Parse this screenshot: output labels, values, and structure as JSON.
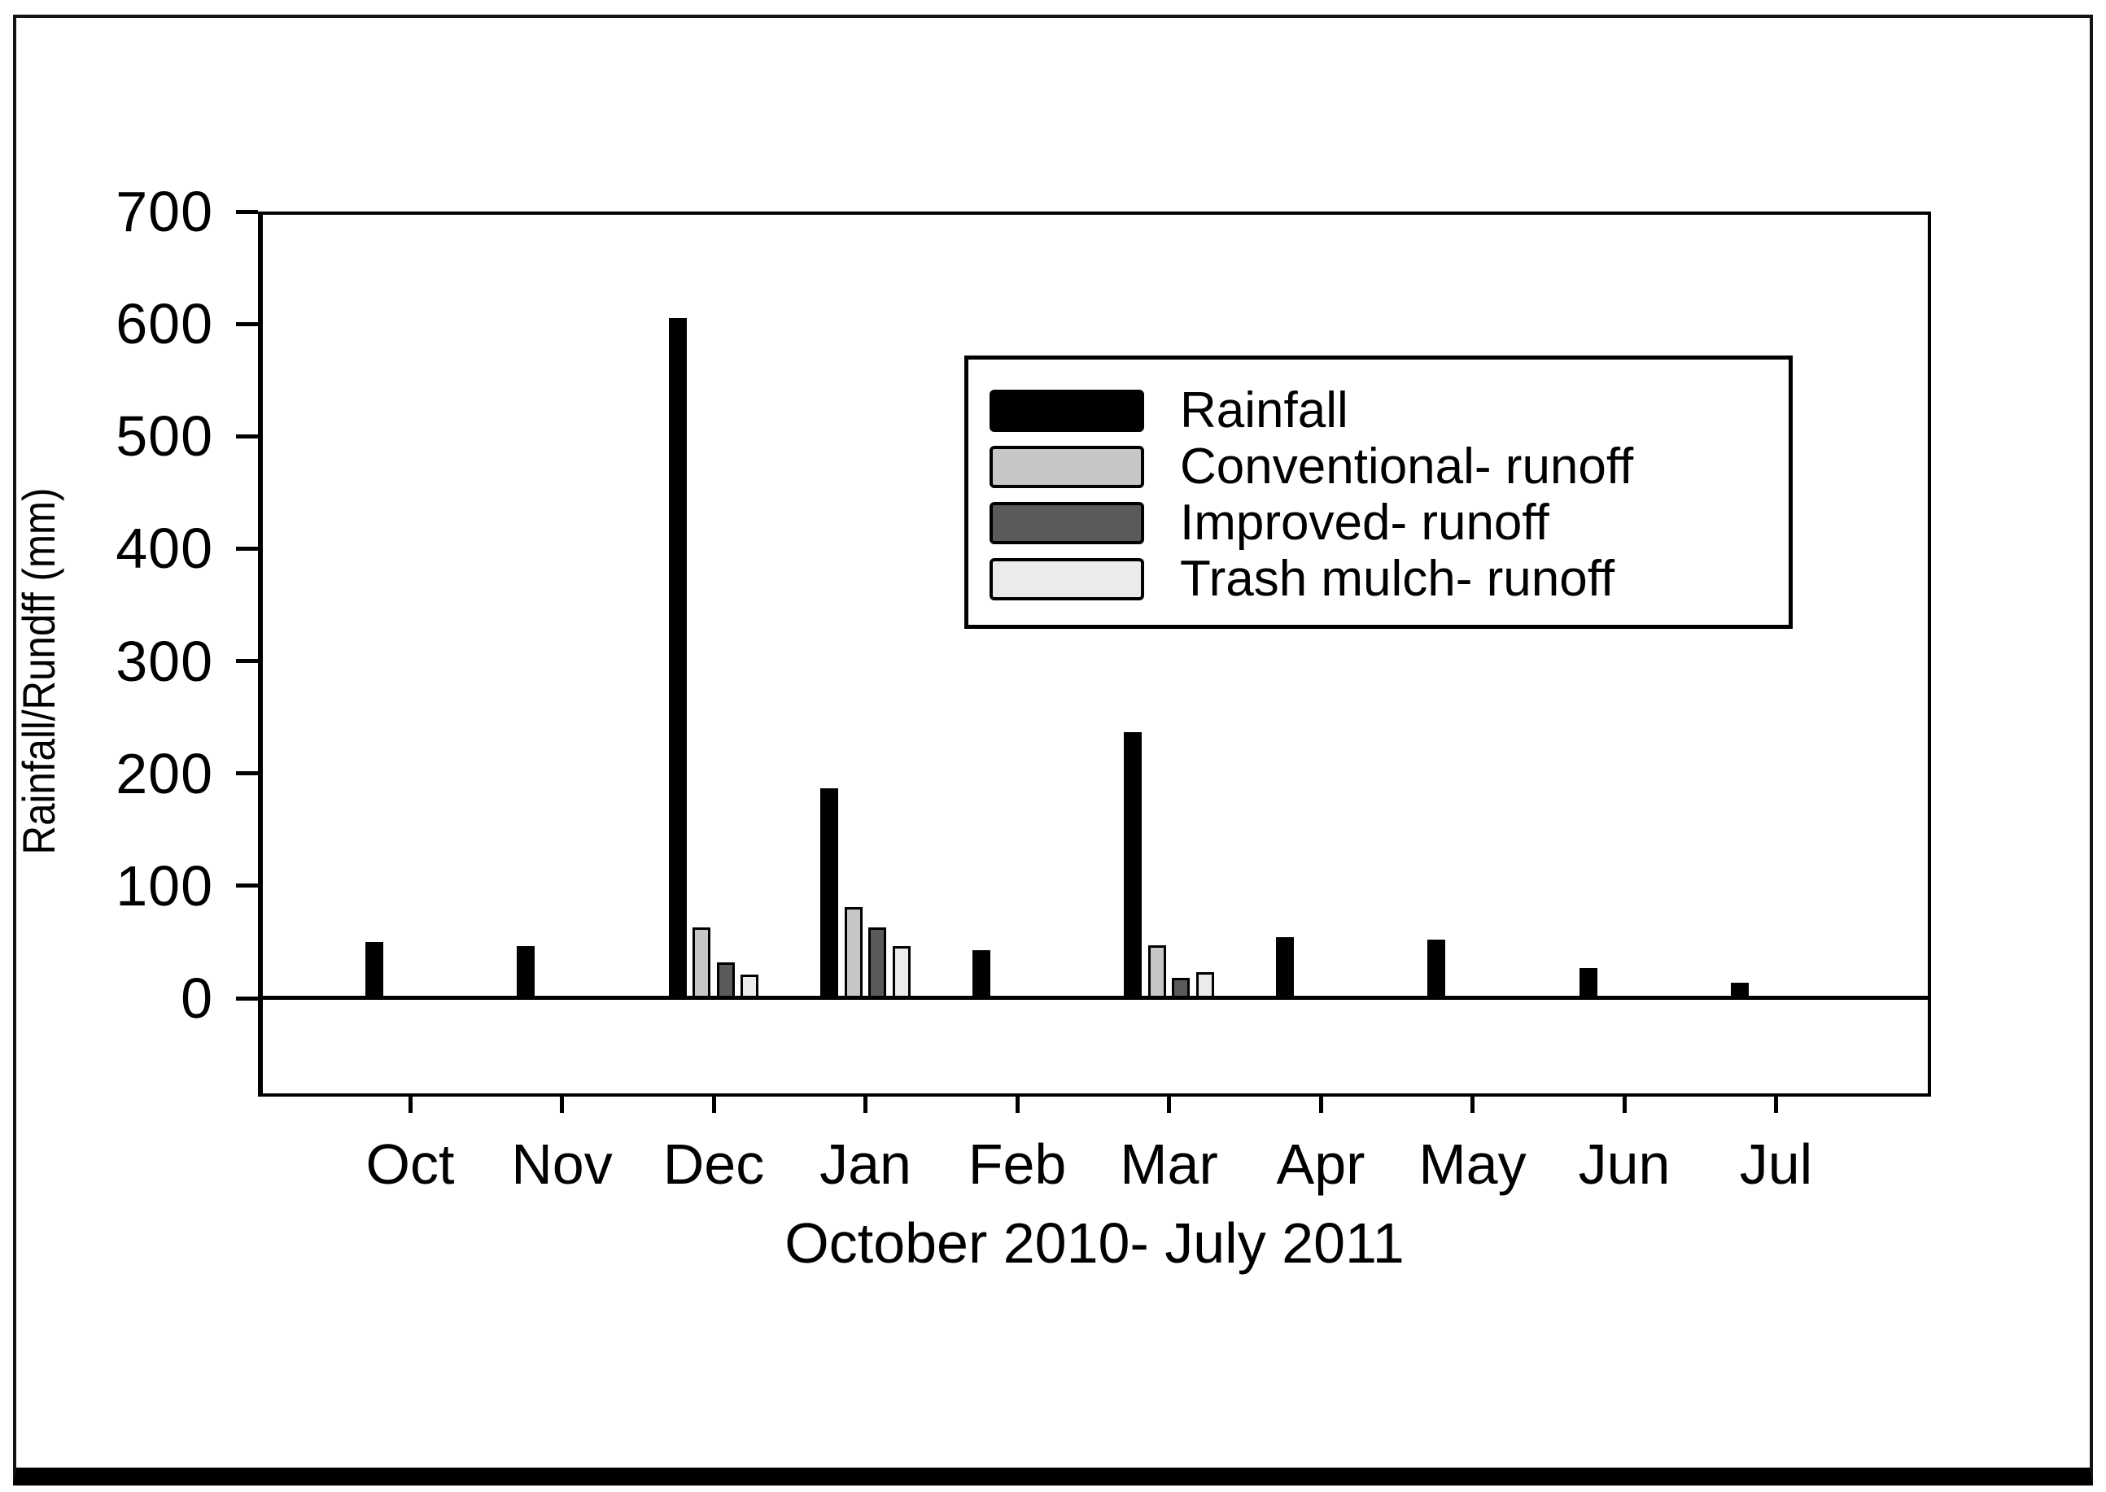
{
  "chart_data": {
    "type": "bar",
    "title": "",
    "xlabel": "October 2010- July 2011",
    "ylabel": "Rainfall/Rundff (mm)",
    "ylim": [
      0,
      700
    ],
    "yticks": [
      0,
      100,
      200,
      300,
      400,
      500,
      600,
      700
    ],
    "grid": false,
    "legend_position": "inside-upper-middle",
    "categories": [
      "Oct",
      "Nov",
      "Dec",
      "Jan",
      "Feb",
      "Mar",
      "Apr",
      "May",
      "Jun",
      "Jul"
    ],
    "series": [
      {
        "name": "Rainfall",
        "color": "#000000",
        "values": [
          50,
          46,
          605,
          187,
          43,
          237,
          54,
          52,
          27,
          14
        ]
      },
      {
        "name": "Conventional- runoff",
        "color": "#c6c6c6",
        "values": [
          0,
          0,
          63,
          81,
          0,
          47,
          0,
          0,
          0,
          0
        ]
      },
      {
        "name": "Improved- runoff",
        "color": "#5a5a5a",
        "values": [
          0,
          0,
          32,
          63,
          0,
          18,
          0,
          0,
          0,
          0
        ]
      },
      {
        "name": "Trash mulch- runoff",
        "color": "#ebebeb",
        "values": [
          0,
          0,
          21,
          46,
          0,
          23,
          0,
          0,
          0,
          0
        ]
      }
    ]
  }
}
